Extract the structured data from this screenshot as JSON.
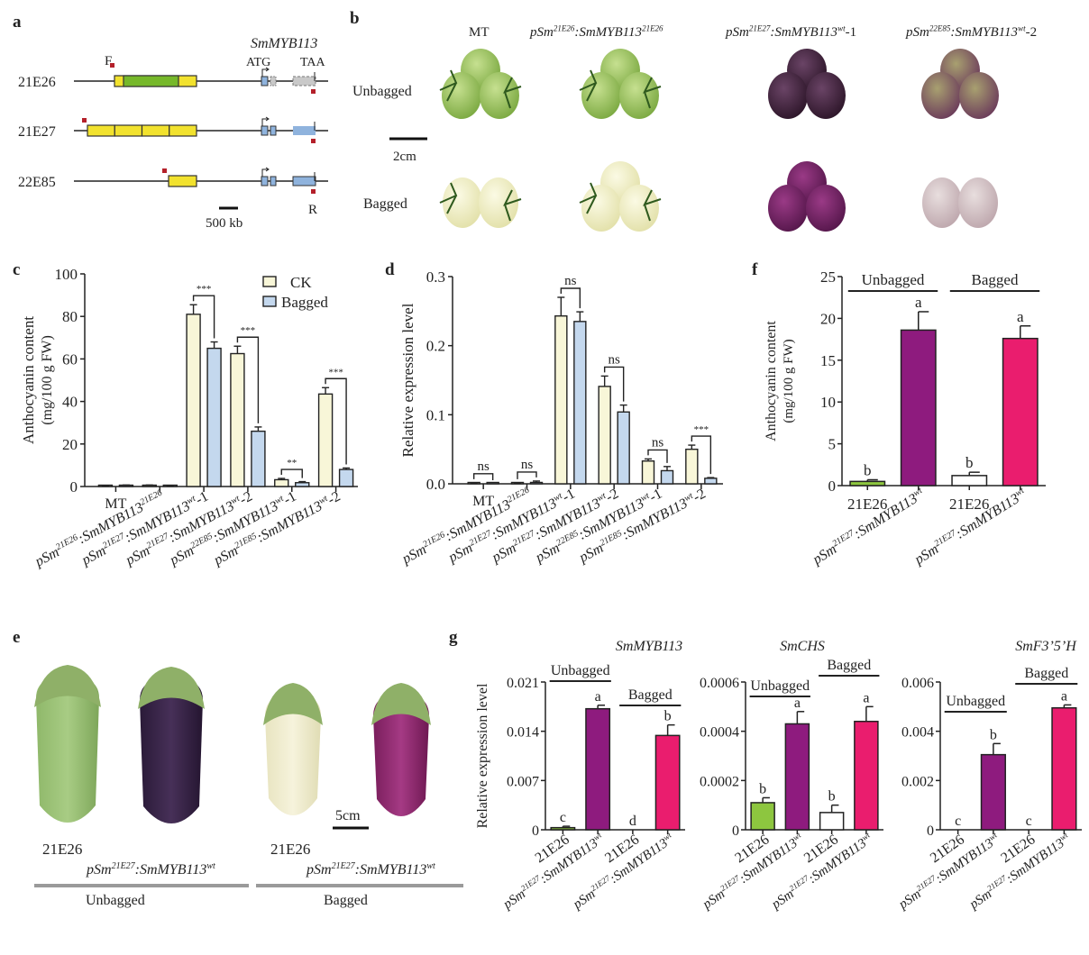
{
  "panels": {
    "a": "a",
    "b": "b",
    "c": "c",
    "d": "d",
    "e": "e",
    "f": "f",
    "g": "g"
  },
  "colors": {
    "ck": "#f8f6d8",
    "bagged": "#c4d8ee",
    "green": "#8dc63f",
    "purple": "#8e1b7e",
    "pink": "#ea1d6e",
    "white": "#ffffff",
    "yellow": "#f2e22e",
    "gene_green": "#76b82a",
    "exon_blue": "#8fb3dd",
    "exon_grey": "#c9c9c9",
    "primer": "#b4202a"
  },
  "panel_a": {
    "gene": "SmMYB113",
    "atg": "ATG",
    "taa": "TAA",
    "primer_f": "F",
    "primer_r": "R",
    "scale": "500 kb",
    "rows": [
      {
        "label": "21E26",
        "repeats": 3,
        "mid_green": true,
        "mutant": true
      },
      {
        "label": "21E27",
        "repeats": 4,
        "mid_green": false,
        "mutant": false
      },
      {
        "label": "22E85",
        "repeats": 1,
        "mid_green": false,
        "mutant": false
      }
    ]
  },
  "panel_b": {
    "columns": [
      {
        "pre": "pSm",
        "sup1": "",
        "mid": "",
        "sup2": "",
        "post": "MT",
        "plain": true
      },
      {
        "pre": "pSm",
        "sup1": "21E26",
        "mid": ":SmMYB113",
        "sup2": "21E26",
        "post": ""
      },
      {
        "pre": "pSm",
        "sup1": "21E27",
        "mid": ":SmMYB113",
        "sup2": "wt",
        "post": "-1"
      },
      {
        "pre": "pSm",
        "sup1": "22E85",
        "mid": ":SmMYB113",
        "sup2": "wt",
        "post": "-2"
      }
    ],
    "rows": [
      "Unbagged",
      "Bagged"
    ],
    "scale": "2cm",
    "fruit_colors": [
      [
        "#a9cf66",
        "#a8cf68",
        "#3d1d3a",
        "#8c7a5a"
      ],
      [
        "#f2f0c6",
        "#eeeebc",
        "#6d1f5c",
        "#cdb8b8"
      ]
    ]
  },
  "chart_data": [
    {
      "id": "c",
      "type": "bar",
      "ylabel": "Anthocyanin content",
      "ylabel2": "(mg/100 g FW)",
      "ylim": [
        0,
        100
      ],
      "yticks": [
        "0",
        "20",
        "40",
        "60",
        "80",
        "100"
      ],
      "ytick_values": [
        0,
        20,
        40,
        60,
        80,
        100
      ],
      "categories": [
        {
          "plain": "MT"
        },
        {
          "pre": "pSm",
          "sup1": "21E26",
          "mid": ":SmMYB113",
          "sup2": "21E26",
          "post": ""
        },
        {
          "pre": "pSm",
          "sup1": "21E27",
          "mid": ":SmMYB113",
          "sup2": "wt",
          "post": "-1"
        },
        {
          "pre": "pSm",
          "sup1": "21E27",
          "mid": ":SmMYB113",
          "sup2": "wt",
          "post": "-2"
        },
        {
          "pre": "pSm",
          "sup1": "22E85",
          "mid": ":SmMYB113",
          "sup2": "wt",
          "post": "-1"
        },
        {
          "pre": "pSm",
          "sup1": "21E85",
          "mid": ":SmMYB113",
          "sup2": "wt",
          "post": "-2"
        }
      ],
      "legend": [
        "CK",
        "Bagged"
      ],
      "legend_position": "top-right",
      "series": [
        {
          "name": "CK",
          "values": [
            0.3,
            0.4,
            81,
            62.5,
            3.2,
            43.5
          ],
          "errors": [
            0.2,
            0.3,
            4.5,
            3.5,
            0.6,
            3
          ]
        },
        {
          "name": "Bagged",
          "values": [
            0.4,
            0.3,
            65,
            26,
            1.8,
            8
          ],
          "errors": [
            0.3,
            0.2,
            3,
            2,
            0.5,
            0.7
          ]
        }
      ],
      "significance": [
        "",
        "",
        "***",
        "***",
        "**",
        "***"
      ]
    },
    {
      "id": "d",
      "type": "bar",
      "ylabel": "Relative expression level",
      "ylim": [
        0,
        0.3
      ],
      "yticks": [
        "0.0",
        "0.1",
        "0.2",
        "0.3"
      ],
      "ytick_values": [
        0,
        0.1,
        0.2,
        0.3
      ],
      "categories": [
        {
          "plain": "MT"
        },
        {
          "pre": "pSm",
          "sup1": "21E26",
          "mid": ":SmMYB113",
          "sup2": "21E26",
          "post": ""
        },
        {
          "pre": "pSm",
          "sup1": "21E27",
          "mid": ":SmMYB113",
          "sup2": "wt",
          "post": "-1"
        },
        {
          "pre": "pSm",
          "sup1": "21E27",
          "mid": ":SmMYB113",
          "sup2": "wt",
          "post": "-2"
        },
        {
          "pre": "pSm",
          "sup1": "22E85",
          "mid": ":SmMYB113",
          "sup2": "wt",
          "post": "-1"
        },
        {
          "pre": "pSm",
          "sup1": "21E85",
          "mid": ":SmMYB113",
          "sup2": "wt",
          "post": "-2"
        }
      ],
      "series": [
        {
          "name": "CK",
          "values": [
            0.001,
            0.001,
            0.243,
            0.141,
            0.033,
            0.05
          ],
          "errors": [
            0.0005,
            0.0005,
            0.027,
            0.015,
            0.003,
            0.006
          ]
        },
        {
          "name": "Bagged",
          "values": [
            0,
            0.002,
            0.235,
            0.104,
            0.019,
            0.008
          ],
          "errors": [
            0,
            0.002,
            0.014,
            0.01,
            0.006,
            0.001
          ]
        }
      ],
      "significance": [
        "ns",
        "ns",
        "ns",
        "ns",
        "ns",
        "***"
      ]
    },
    {
      "id": "f",
      "type": "bar",
      "ylabel": "Anthocyanin content",
      "ylabel2": "(mg/100 g FW)",
      "ylim": [
        0,
        25
      ],
      "yticks": [
        "0",
        "5",
        "10",
        "15",
        "20",
        "25"
      ],
      "ytick_values": [
        0,
        5,
        10,
        15,
        20,
        25
      ],
      "groups": [
        "Unbagged",
        "Bagged"
      ],
      "categories": [
        "21E26",
        "pSm21E27:SmMYB113wt",
        "21E26",
        "pSm21E27:SmMYB113wt"
      ],
      "values": [
        0.5,
        18.6,
        1.2,
        17.6
      ],
      "errors": [
        0.2,
        2.2,
        0.4,
        1.5
      ],
      "letters": [
        "b",
        "a",
        "b",
        "a"
      ],
      "fills": [
        "#8dc63f",
        "#8e1b7e",
        "#ffffff",
        "#ea1d6e"
      ]
    },
    {
      "id": "g1",
      "type": "bar",
      "title": "SmMYB113",
      "ylabel": "Relative expression level",
      "ylim": [
        0,
        0.021
      ],
      "yticks": [
        "0",
        "0.007",
        "0.014",
        "0.021"
      ],
      "ytick_values": [
        0,
        0.007,
        0.014,
        0.021
      ],
      "groups": [
        "Unbagged",
        "Bagged"
      ],
      "categories": [
        "21E26",
        "pSm21E27:SmMYB113wt",
        "21E26",
        "pSm21E27:SmMYB113wt"
      ],
      "values": [
        0.0003,
        0.0172,
        0,
        0.0134
      ],
      "errors": [
        0.0002,
        0.0005,
        0,
        0.0015
      ],
      "letters": [
        "c",
        "a",
        "d",
        "b"
      ],
      "fills": [
        "#8dc63f",
        "#8e1b7e",
        "#ffffff",
        "#ea1d6e"
      ]
    },
    {
      "id": "g2",
      "type": "bar",
      "title": "SmCHS",
      "ylim": [
        0,
        0.0006
      ],
      "yticks": [
        "0",
        "0.0002",
        "0.0004",
        "0.0006"
      ],
      "ytick_values": [
        0,
        0.0002,
        0.0004,
        0.0006
      ],
      "groups": [
        "Unbagged",
        "Bagged"
      ],
      "categories": [
        "21E26",
        "pSm21E27:SmMYB113wt",
        "21E26",
        "pSm21E27:SmMYB113wt"
      ],
      "values": [
        0.00011,
        0.00043,
        7e-05,
        0.00044
      ],
      "errors": [
        2e-05,
        5e-05,
        3e-05,
        6e-05
      ],
      "letters": [
        "b",
        "a",
        "b",
        "a"
      ],
      "fills": [
        "#8dc63f",
        "#8e1b7e",
        "#ffffff",
        "#ea1d6e"
      ]
    },
    {
      "id": "g3",
      "type": "bar",
      "title": "SmF3’5’H",
      "ylim": [
        0,
        0.006
      ],
      "yticks": [
        "0",
        "0.002",
        "0.004",
        "0.006"
      ],
      "ytick_values": [
        0,
        0.002,
        0.004,
        0.006
      ],
      "groups": [
        "Unbagged",
        "Bagged"
      ],
      "categories": [
        "21E26",
        "pSm21E27:SmMYB113wt",
        "21E26",
        "pSm21E27:SmMYB113wt"
      ],
      "values": [
        0,
        0.00305,
        0,
        0.00495
      ],
      "errors": [
        0,
        0.00045,
        0,
        0.00012
      ],
      "letters": [
        "c",
        "b",
        "c",
        "a"
      ],
      "fills": [
        "#8dc63f",
        "#8e1b7e",
        "#ffffff",
        "#ea1d6e"
      ]
    }
  ],
  "xlabel_parts": {
    "line": "21E26",
    "pre": "pSm",
    "sup1": "21E27",
    "mid": ":SmMYB113",
    "sup2": "wt"
  },
  "panel_e": {
    "labels": [
      "21E26",
      "21E26"
    ],
    "construct": {
      "pre": "pSm",
      "sup1": "21E27",
      "mid": ":SmMYB113",
      "sup2": "wt"
    },
    "groups": [
      "Unbagged",
      "Bagged"
    ],
    "scale": "5cm",
    "fruit_colors": [
      "#7fab62",
      "#352447",
      "#efeccc",
      "#9c2e74"
    ]
  }
}
